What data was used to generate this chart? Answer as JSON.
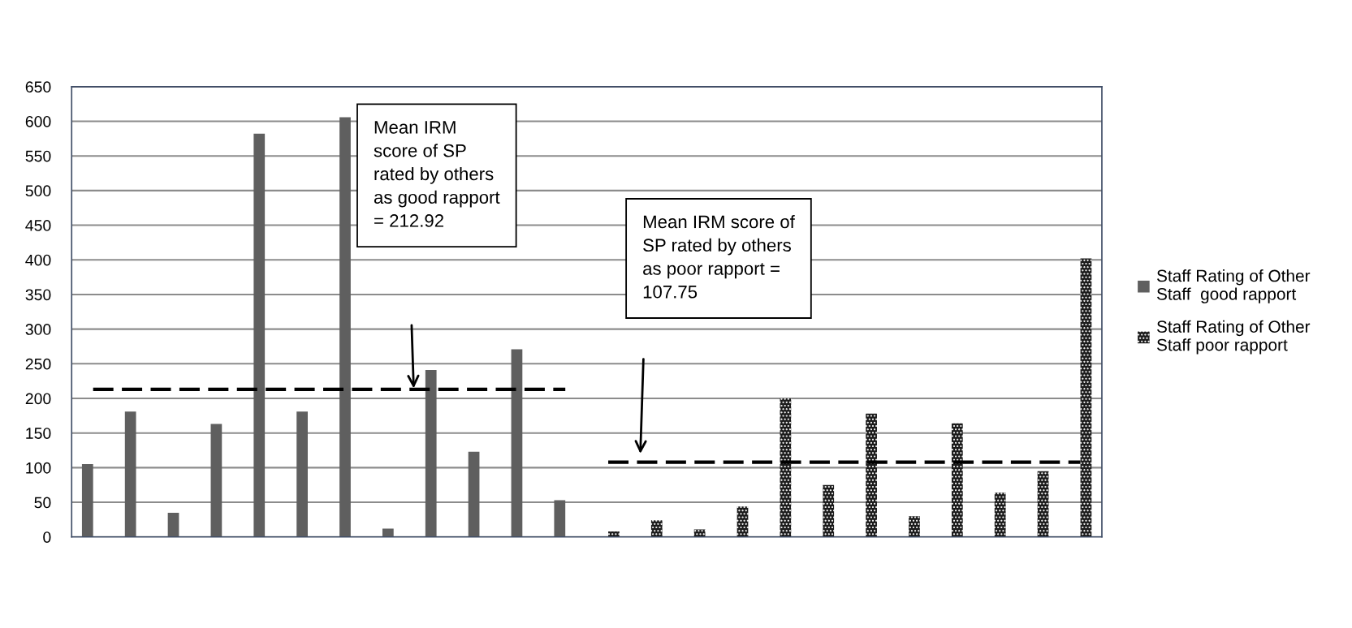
{
  "chart_data": {
    "type": "bar",
    "categories": [
      null,
      null,
      null,
      null,
      null,
      null,
      null,
      null,
      null,
      null,
      null,
      null,
      null,
      null,
      null,
      null,
      null,
      null,
      null,
      null,
      null,
      null,
      null,
      null
    ],
    "series": [
      {
        "name": "Staff Rating of Other Staff  good rapport",
        "color": "#5f5f5f",
        "values": [
          105,
          181,
          35,
          163,
          582,
          181,
          606,
          12,
          241,
          123,
          271,
          53,
          null,
          null,
          null,
          null,
          null,
          null,
          null,
          null,
          null,
          null,
          null,
          null
        ]
      },
      {
        "name": "Staff Rating of Other Staff poor rapport",
        "color": "#1c1c1c",
        "values": [
          null,
          null,
          null,
          null,
          null,
          null,
          null,
          null,
          null,
          null,
          null,
          null,
          8,
          24,
          11,
          44,
          200,
          75,
          178,
          30,
          164,
          64,
          95,
          402
        ]
      },
      {
        "type": "line",
        "color": "#000000",
        "line_style": "dashed",
        "values": [
          213,
          213,
          213,
          213,
          213,
          213,
          213,
          213,
          213,
          213,
          213,
          213,
          null,
          null,
          null,
          null,
          null,
          null,
          null,
          null,
          null,
          null,
          null,
          null
        ]
      },
      {
        "type": "line",
        "color": "#000000",
        "line_style": "dashed",
        "values": [
          null,
          null,
          null,
          null,
          null,
          null,
          null,
          null,
          null,
          null,
          null,
          null,
          108,
          108,
          108,
          108,
          108,
          108,
          108,
          108,
          108,
          108,
          108,
          108
        ]
      }
    ],
    "ylim": [
      0,
      650
    ],
    "yticks": [
      0,
      50,
      100,
      150,
      200,
      250,
      300,
      350,
      400,
      450,
      500,
      550,
      600,
      650
    ],
    "grid": "y",
    "legend": "right",
    "marker": "none",
    "annotations": [
      "Mean IRM\nscore of SP\nrated by others\nas good rapport\n= 212.92",
      "Mean IRM score of\nSP rated by others\nas poor rapport =\n107.75"
    ]
  }
}
